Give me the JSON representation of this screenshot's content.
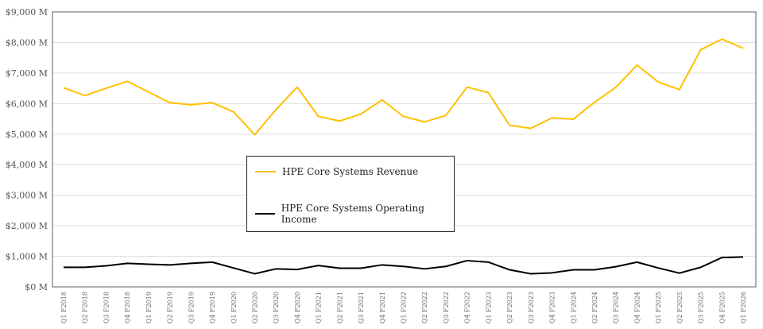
{
  "chart_data": {
    "type": "line",
    "categories": [
      "Q1 F2018",
      "Q2 F2018",
      "Q3 F2018",
      "Q4 F2018",
      "Q1 F2019",
      "Q2 F2019",
      "Q3 F2019",
      "Q4 F2019",
      "Q1 F2020",
      "Q2 F2020",
      "Q3 F2020",
      "Q4 F2020",
      "Q1 F2021",
      "Q2 F2021",
      "Q3 F2021",
      "Q4 F2021",
      "Q1 F2022",
      "Q2 F2022",
      "Q3 F2022",
      "Q4 F2022",
      "Q1 F2023",
      "Q2 F2023",
      "Q3 F2023",
      "Q4 F2023",
      "Q1 F2024",
      "Q2 F2024",
      "Q3 F2024",
      "Q4 F2024",
      "Q1 F2025",
      "Q2 F2025",
      "Q3 F2025",
      "Q4 F2025",
      "Q1 F2026"
    ],
    "series": [
      {
        "name": "HPE Core Systems Revenue",
        "color": "#FFC000",
        "values": [
          6520,
          6260,
          6500,
          6730,
          6380,
          6030,
          5960,
          6030,
          5730,
          4980,
          5800,
          6540,
          5580,
          5430,
          5660,
          6120,
          5580,
          5400,
          5610,
          6540,
          6360,
          5290,
          5190,
          5530,
          5490,
          6040,
          6530,
          7260,
          6710,
          6460,
          7760,
          8110,
          7810
        ]
      },
      {
        "name": "HPE Core Systems Operating Income",
        "color": "#000000",
        "values": [
          640,
          640,
          690,
          770,
          740,
          720,
          770,
          810,
          620,
          430,
          590,
          570,
          700,
          610,
          610,
          720,
          670,
          590,
          670,
          860,
          810,
          560,
          430,
          460,
          560,
          560,
          660,
          810,
          620,
          450,
          640,
          960,
          980
        ]
      }
    ],
    "yticks": [
      "$0 M",
      "$1,000 M",
      "$2,000 M",
      "$3,000 M",
      "$4,000 M",
      "$5,000 M",
      "$6,000 M",
      "$7,000 M",
      "$8,000 M",
      "$9,000 M"
    ],
    "ylim": [
      0,
      9000
    ],
    "grid": true,
    "legend_placement": "center"
  }
}
